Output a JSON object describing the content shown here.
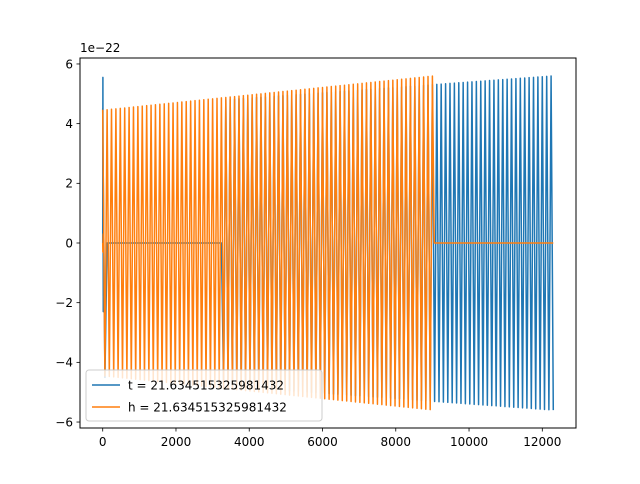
{
  "chart_data": {
    "type": "line",
    "title": "",
    "xlabel": "",
    "ylabel": "",
    "y_offset_label": "1e−22",
    "xlim": [
      -620,
      12920
    ],
    "ylim": [
      -6.2,
      6.2
    ],
    "grid": false,
    "legend_position": "lower-left",
    "x_ticks": [
      {
        "value": 0,
        "label": "0"
      },
      {
        "value": 2000,
        "label": "2000"
      },
      {
        "value": 4000,
        "label": "4000"
      },
      {
        "value": 6000,
        "label": "6000"
      },
      {
        "value": 8000,
        "label": "8000"
      },
      {
        "value": 10000,
        "label": "10000"
      },
      {
        "value": 12000,
        "label": "12000"
      }
    ],
    "y_ticks": [
      {
        "value": -6,
        "label": "−6"
      },
      {
        "value": -4,
        "label": "−4"
      },
      {
        "value": -2,
        "label": "−2"
      },
      {
        "value": 0,
        "label": "0"
      },
      {
        "value": 2,
        "label": "2"
      },
      {
        "value": 4,
        "label": "4"
      },
      {
        "value": 6,
        "label": "6"
      }
    ],
    "series": [
      {
        "name": "t = 21.634515325981432",
        "color": "#1f77b4",
        "signal": "oscillation",
        "x_start": 0,
        "x_end": 12300,
        "period": 120,
        "amplitude_start": 4.5,
        "amplitude_end": 5.6,
        "initial_spike": [
          5.55,
          -2.3
        ],
        "gap": [
          100,
          3250
        ]
      },
      {
        "name": "h = 21.634515325981432",
        "color": "#ff7f0e",
        "signal": "oscillation",
        "x_start": 0,
        "x_end": 9050,
        "flat_to": 12300,
        "period": 120,
        "amplitude_start": 4.45,
        "amplitude_end": 5.6,
        "initial_spike": [
          -0.3,
          0.3
        ]
      }
    ]
  }
}
